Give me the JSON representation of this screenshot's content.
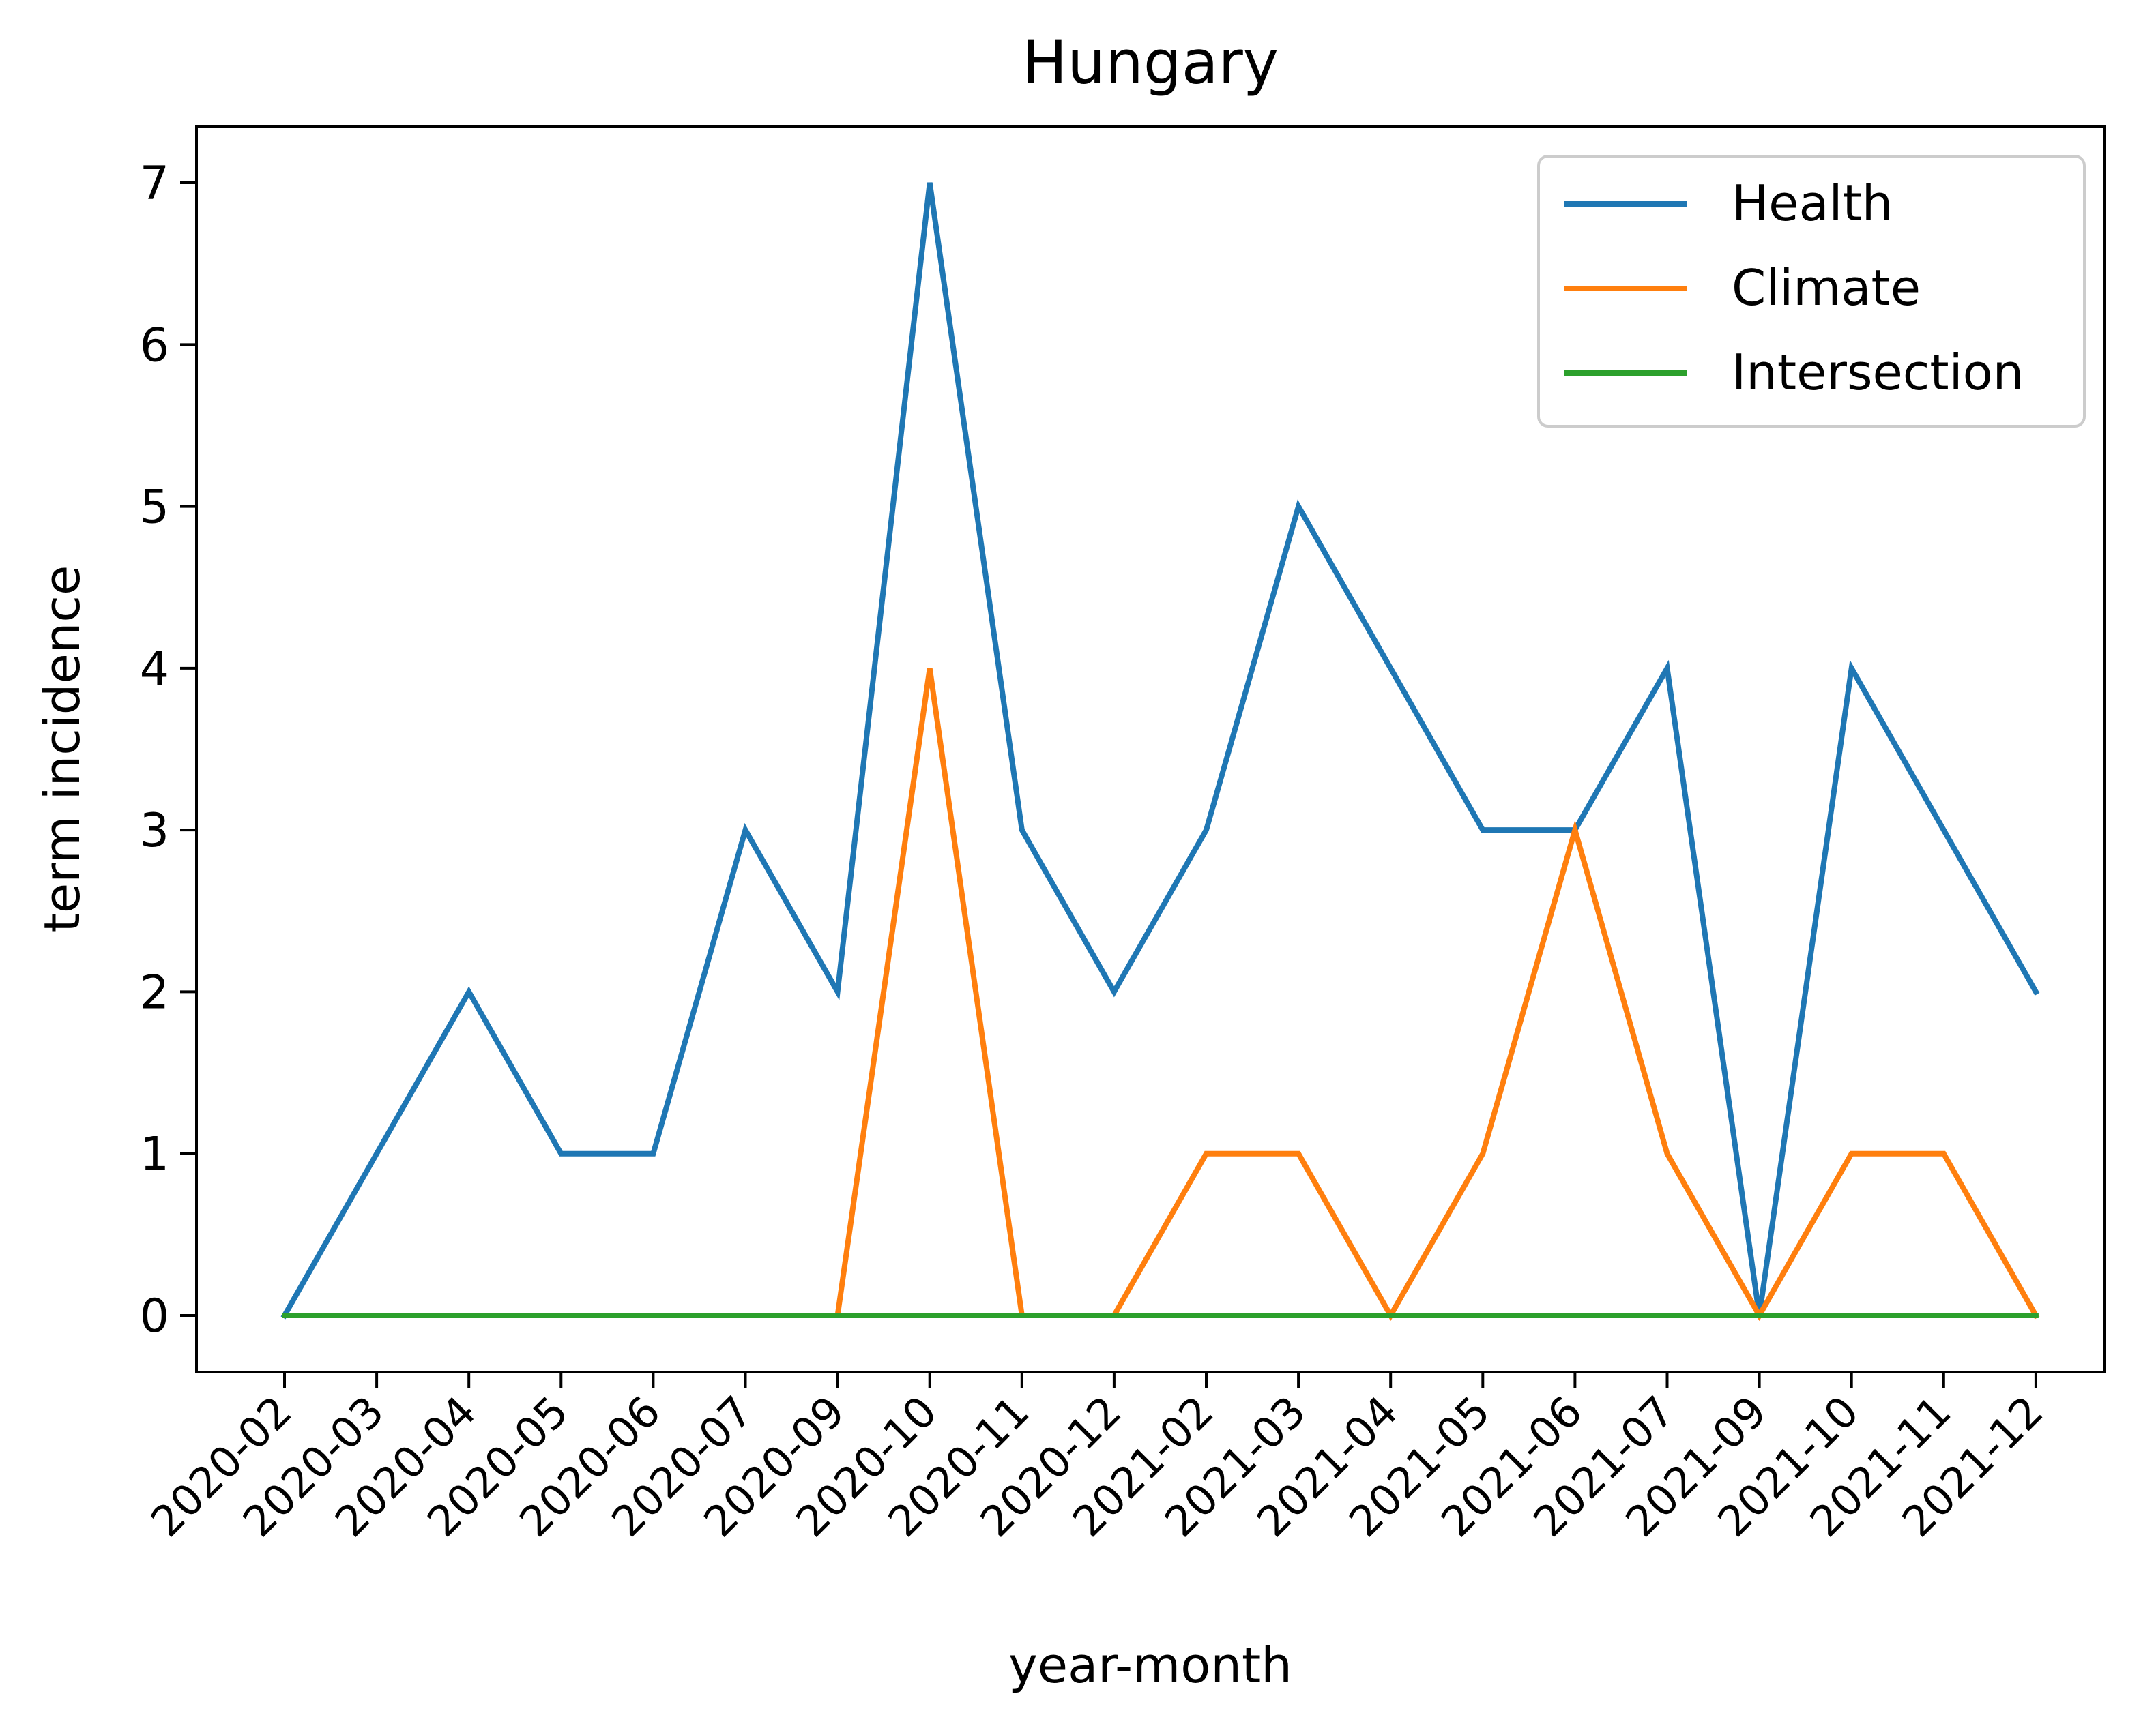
{
  "chart_data": {
    "type": "line",
    "title": "Hungary",
    "xlabel": "year-month",
    "ylabel": "term incidence",
    "categories": [
      "2020-02",
      "2020-03",
      "2020-04",
      "2020-05",
      "2020-06",
      "2020-07",
      "2020-09",
      "2020-10",
      "2020-11",
      "2020-12",
      "2021-02",
      "2021-03",
      "2021-04",
      "2021-05",
      "2021-06",
      "2021-07",
      "2021-09",
      "2021-10",
      "2021-11",
      "2021-12"
    ],
    "yticks": [
      "0",
      "1",
      "2",
      "3",
      "4",
      "5",
      "6",
      "7"
    ],
    "ylim": [
      -0.35,
      7.35
    ],
    "grid": false,
    "legend_position": "top-right",
    "series": [
      {
        "name": "Health",
        "color": "#1f77b4",
        "values": [
          0,
          1,
          2,
          1,
          1,
          3,
          2,
          7,
          3,
          2,
          3,
          5,
          4,
          3,
          3,
          4,
          0,
          4,
          3,
          2
        ]
      },
      {
        "name": "Climate",
        "color": "#ff7f0e",
        "values": [
          0,
          0,
          0,
          0,
          0,
          0,
          0,
          4,
          0,
          0,
          1,
          1,
          0,
          1,
          3,
          1,
          0,
          1,
          1,
          0
        ]
      },
      {
        "name": "Intersection",
        "color": "#2ca02c",
        "values": [
          0,
          0,
          0,
          0,
          0,
          0,
          0,
          0,
          0,
          0,
          0,
          0,
          0,
          0,
          0,
          0,
          0,
          0,
          0,
          0
        ]
      }
    ]
  }
}
